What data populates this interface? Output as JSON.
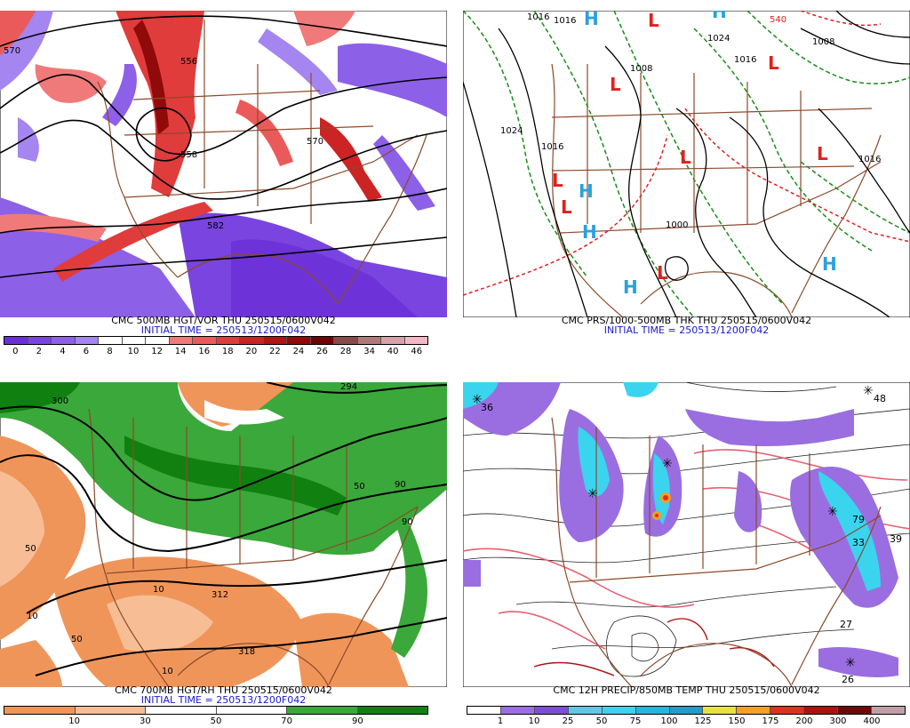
{
  "panels": {
    "p1": {
      "title": "CMC 500MB HGT/VOR THU 250515/0600V042",
      "init": "INITIAL TIME = 250513/1200F042",
      "contour_labels": [
        "570",
        "556",
        "558",
        "570",
        "582"
      ],
      "colorbar": {
        "ticks": [
          "0",
          "2",
          "4",
          "6",
          "8",
          "10",
          "12",
          "14",
          "16",
          "18",
          "20",
          "22",
          "24",
          "26",
          "28",
          "34",
          "40",
          "46"
        ],
        "colors": [
          "#6a2fd6",
          "#7a44e0",
          "#8d60e8",
          "#a585ef",
          "#ffffff",
          "#ffffff",
          "#ffffff",
          "#f07a7a",
          "#eb5a5a",
          "#e03c3c",
          "#cc2424",
          "#b01414",
          "#900a0a",
          "#6e0606",
          "#8a4a4a",
          "#b07a7a",
          "#d8a0a8",
          "#f4b8c4"
        ]
      }
    },
    "p2": {
      "title": "CMC PRS/1000-500MB THK THU 250515/0600V042",
      "init": "INITIAL TIME = 250513/1200F042",
      "pressure_labels": [
        "1016",
        "1016",
        "540",
        "1024",
        "1008",
        "1016",
        "1024",
        "1016",
        "1008",
        "1000",
        "1016"
      ],
      "highs": [
        "H",
        "H",
        "H",
        "H",
        "H",
        "H"
      ],
      "lows": [
        "L",
        "L",
        "L",
        "L",
        "L",
        "L",
        "L",
        "L"
      ]
    },
    "p3": {
      "title": "CMC 700MB HGT/RH THU 250515/0600V042",
      "init": "INITIAL TIME = 250513/1200F042",
      "contour_labels": [
        "300",
        "294",
        "312",
        "318",
        "10",
        "10",
        "10",
        "50",
        "50",
        "50",
        "90",
        "90"
      ],
      "colorbar": {
        "ticks": [
          "10",
          "30",
          "50",
          "70",
          "90"
        ],
        "colors": [
          "#f0955a",
          "#f7be96",
          "#ffffff",
          "#ffffff",
          "#3aa83a",
          "#108010"
        ]
      }
    },
    "p4": {
      "title": "CMC 12H PRECIP/850MB TEMP THU 250515/0600V042",
      "init": "",
      "precip_labels": [
        "36",
        "48",
        "79",
        "39",
        "27",
        "26",
        "33"
      ],
      "colorbar": {
        "ticks": [
          "1",
          "10",
          "25",
          "50",
          "75",
          "100",
          "125",
          "150",
          "175",
          "200",
          "300",
          "400"
        ],
        "colors": [
          "#ffffff",
          "#9a6ee0",
          "#7a4fd6",
          "#5fc8e6",
          "#3ad4ee",
          "#20b8dc",
          "#209ec8",
          "#e8e23c",
          "#f4a020",
          "#e03020",
          "#b01010",
          "#700808",
          "#c0a0a8"
        ]
      }
    }
  },
  "icons": [
    "map-panel",
    "colorbar",
    "high-pressure-marker",
    "low-pressure-marker"
  ]
}
